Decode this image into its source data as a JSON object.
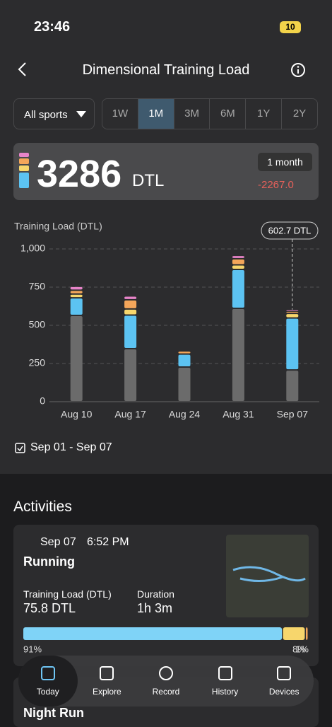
{
  "status": {
    "time": "23:46",
    "battery": "10"
  },
  "header": {
    "title": "Dimensional Training Load"
  },
  "filters": {
    "sport": "All sports",
    "periods": [
      "1W",
      "1M",
      "3M",
      "6M",
      "1Y",
      "2Y"
    ],
    "selected": 1
  },
  "summary": {
    "value": "3286",
    "unit": "DTL",
    "period": "1 month",
    "change": "-2267.0"
  },
  "chart_data": {
    "type": "stacked-bar",
    "y_label": "Training Load (DTL)",
    "annotation": "602.7 DTL",
    "categories": [
      "Aug 10",
      "Aug 17",
      "Aug 24",
      "Aug 31",
      "Sep 07"
    ],
    "series": [
      {
        "color": "#6b6b6b",
        "values": [
          565,
          347,
          227,
          611,
          208
        ]
      },
      {
        "color": "#5cc3f2",
        "values": [
          115,
          220,
          85,
          255,
          340
        ]
      },
      {
        "color": "#f7d66c",
        "values": [
          25,
          40,
          0,
          30,
          30
        ]
      },
      {
        "color": "#f4a65a",
        "values": [
          25,
          60,
          20,
          40,
          15
        ]
      },
      {
        "color": "#e784c9",
        "values": [
          25,
          25,
          0,
          22,
          10
        ]
      }
    ],
    "ylim": [
      0,
      1000
    ],
    "yticks": [
      0,
      250,
      500,
      750,
      {
        "value": 1000,
        "label": "1,000"
      }
    ],
    "grid": true
  },
  "range": "Sep 01 - Sep 07",
  "activities": {
    "title": "Activities",
    "card": {
      "date": "Sep 07",
      "time": "6:52 PM",
      "name": "Running",
      "load_label": "Training Load (DTL)",
      "load": "75.8 DTL",
      "duration_label": "Duration",
      "duration": "1h 3m",
      "zones": {
        "values": [
          91,
          8,
          1
        ],
        "value_labels": [
          "91%",
          "8%",
          "1%"
        ],
        "colors": [
          "#7fd3f7",
          "#f7d66c",
          "#f4a65a"
        ]
      }
    },
    "next": "Night Run"
  },
  "tabs": [
    "Today",
    "Explore",
    "Record",
    "History",
    "Devices"
  ]
}
